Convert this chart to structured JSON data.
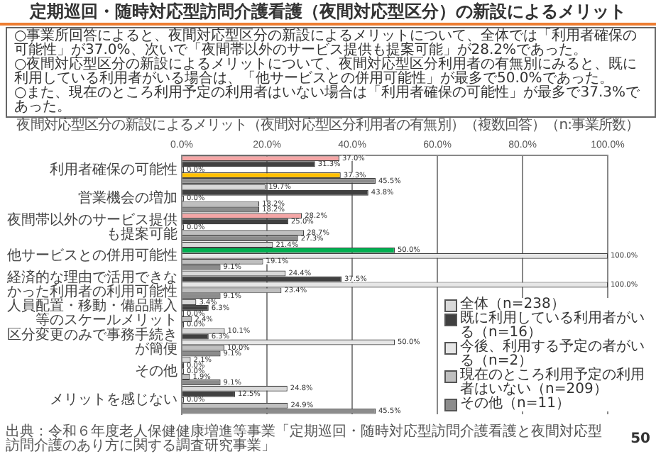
{
  "chart_data": {
    "type": "bar",
    "orientation": "horizontal",
    "title": "定期巡回・随時対応型訪問介護看護（夜間対応型区分）の新設によるメリット",
    "subtitle": "夜間対応型区分の新設によるメリット（夜間対応型区分利用者の有無別）（複数回答）（n:事業所数）",
    "annotations": [
      "○事業所回答によると、夜間対応型区分の新設によるメリットについて、全体では「利用者確保の可能性」が37.0%、次いで「夜間帯以外のサービス提供も提案可能」が28.2%であった。",
      "○夜間対応型区分の新設によるメリットについて、夜間対応型区分利用者の有無別にみると、既に利用している利用者がいる場合は、「他サービスとの併用可能性」が最多で50.0%であった。",
      "○また、現在のところ利用予定の利用者はいない場合は「利用者確保の可能性」が最多で37.3%であった。",
      "出典：令和６年度老人保健健康増進等事業「定期巡回・随時対応型訪問介護看護と夜間対応型訪問介護のあり方に関する調査研究事業」",
      "50"
    ],
    "categories": [
      "利用者確保の可能性",
      "営業機会の増加",
      "夜間帯以外のサービス提供も提案可能",
      "他サービスとの併用可能性",
      "経済的な理由で活用できなかった利用者の利用可能性",
      "人員配置・移動・備品購入等のスケールメリット",
      "区分変更のみで事務手続きが簡便",
      "その他",
      "メリットを感じない"
    ],
    "series": [
      {
        "name": "全体（n=238）",
        "color": "#d9d9d9",
        "colors": [
          "#f4a6a6",
          "#d9d9d9",
          "#f4a6a6",
          "#d9d9d9",
          "#d9d9d9",
          "#d9d9d9",
          "#d9d9d9",
          "#d9d9d9",
          "#d9d9d9"
        ],
        "values": [
          37.0,
          19.7,
          28.2,
          21.4,
          24.4,
          3.4,
          10.1,
          2.1,
          24.8
        ],
        "value_labels": [
          "37.0%",
          "19.7%",
          "28.2%",
          "21.4%",
          "24.4%",
          "3.4%",
          "10.1%",
          "2.1%",
          "24.8%"
        ]
      },
      {
        "name": "既に利用している利用者がいる（n=16）",
        "color": "#404040",
        "colors": [
          "#404040",
          "#404040",
          "#404040",
          "#00b050",
          "#404040",
          "#404040",
          "#404040",
          "#404040",
          "#404040"
        ],
        "values": [
          31.3,
          43.8,
          25.0,
          50.0,
          37.5,
          6.3,
          6.3,
          0.0,
          12.5
        ],
        "value_labels": [
          "31.3%",
          "43.8%",
          "25.0%",
          "50.0%",
          "37.5%",
          "6.3%",
          "6.3%",
          "0.0%",
          "12.5%"
        ]
      },
      {
        "name": "今後、利用する予定の者がいる（n=2）",
        "color": "#e6e6e6",
        "values": [
          0.0,
          0.0,
          0.0,
          100.0,
          100.0,
          0.0,
          50.0,
          0.0,
          0.0
        ],
        "value_labels": [
          "0.0%",
          "0.0%",
          "0.0%",
          "100.0%",
          "100.0%",
          "0.0%",
          "50.0%",
          "0.0%",
          "0.0%"
        ]
      },
      {
        "name": "現在のところ利用予定の利用者はいない（n=209）",
        "color": "#bfbfbf",
        "colors": [
          "#ffc000",
          "#bfbfbf",
          "#bfbfbf",
          "#bfbfbf",
          "#bfbfbf",
          "#bfbfbf",
          "#bfbfbf",
          "#bfbfbf",
          "#bfbfbf"
        ],
        "values": [
          37.3,
          18.2,
          28.7,
          19.1,
          23.4,
          2.4,
          10.0,
          1.9,
          24.9
        ],
        "value_labels": [
          "37.3%",
          "18.2%",
          "28.7%",
          "19.1%",
          "23.4%",
          "2.4%",
          "10.0%",
          "1.9%",
          "24.9%"
        ]
      },
      {
        "name": "その他（n=11）",
        "color": "#8c8c8c",
        "values": [
          45.5,
          18.2,
          27.3,
          9.1,
          9.1,
          0.0,
          9.1,
          9.1,
          45.5
        ],
        "value_labels": [
          "45.5%",
          "18.2%",
          "27.3%",
          "9.1%",
          "9.1%",
          "0.0%",
          "9.1%",
          "9.1%",
          "45.5%"
        ]
      }
    ],
    "xlim": [
      0,
      100
    ],
    "xticks": [
      {
        "value": 0,
        "label": "0.0%"
      },
      {
        "value": 20,
        "label": "20.0%"
      },
      {
        "value": 40,
        "label": "40.0%"
      },
      {
        "value": 60,
        "label": "60.0%"
      },
      {
        "value": 80,
        "label": "80.0%"
      },
      {
        "value": 100,
        "label": "100.0%"
      }
    ],
    "grid": "x",
    "legend": "bottom right"
  }
}
